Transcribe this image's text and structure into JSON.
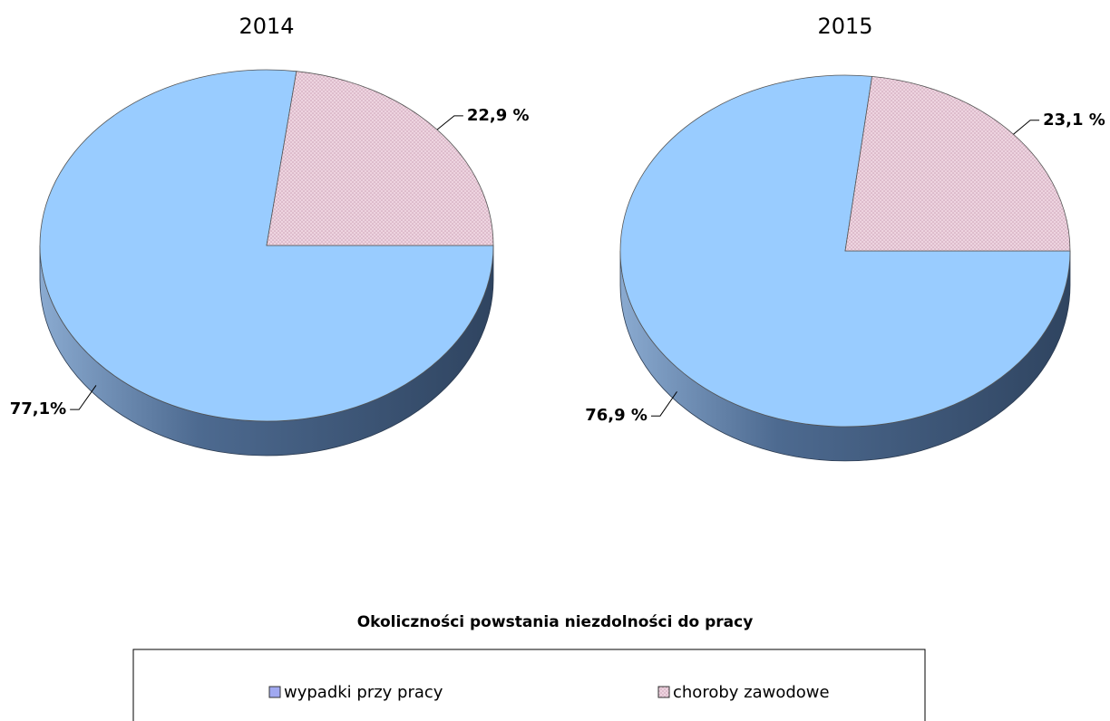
{
  "chart_data": [
    {
      "type": "pie",
      "title": "2014",
      "values": [
        77.1,
        22.9
      ],
      "value_labels": [
        "77,1%",
        "22,9 %"
      ]
    },
    {
      "type": "pie",
      "title": "2015",
      "values": [
        76.9,
        23.1
      ],
      "value_labels": [
        "76,9 %",
        "23,1 %"
      ]
    }
  ],
  "legend": {
    "title": "Okoliczności powstania niezdolności do pracy",
    "labels": [
      "wypadki przy pracy",
      "choroby zawodowe"
    ],
    "colors": [
      "#99ccff",
      "#e8c6d6"
    ]
  }
}
